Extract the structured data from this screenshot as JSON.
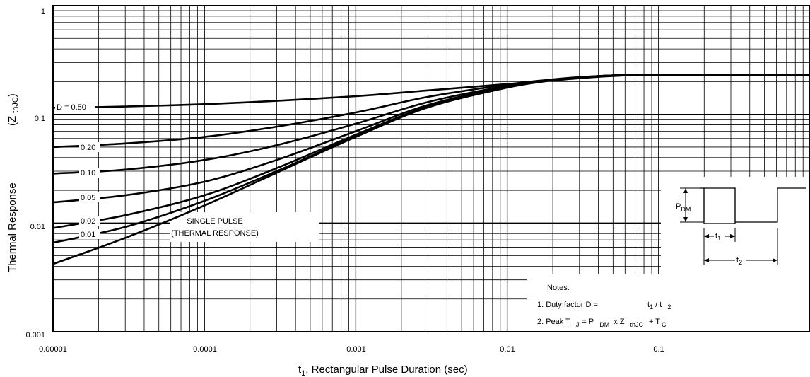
{
  "chart_data": {
    "type": "line",
    "title": "",
    "xlabel": {
      "main": "t",
      "sub": "1",
      "rest": ", Rectangular Pulse Duration (sec)"
    },
    "ylabel": {
      "main": "Thermal Response",
      "paren_open": "(Z",
      "sub": "thJC",
      "paren_close": ")"
    },
    "xscale": "log",
    "yscale": "log",
    "xlim": [
      1e-05,
      1
    ],
    "ylim": [
      0.001,
      1
    ],
    "grid": true,
    "x_tick_labels": [
      "0.00001",
      "0.0001",
      "0.001",
      "0.01",
      "0.1"
    ],
    "y_tick_labels": [
      "1",
      "0.1",
      "0.01",
      "0.001"
    ],
    "series": [
      {
        "name": "D = 0.50",
        "x": [
          1e-05,
          3e-05,
          0.0001,
          0.0003,
          0.001,
          0.003,
          0.01,
          0.02,
          0.03,
          0.05,
          0.1,
          1
        ],
        "y": [
          0.115,
          0.118,
          0.124,
          0.133,
          0.147,
          0.166,
          0.19,
          0.205,
          0.215,
          0.225,
          0.232,
          0.232
        ]
      },
      {
        "name": "0.20",
        "x": [
          1e-05,
          3e-05,
          0.0001,
          0.0003,
          0.001,
          0.003,
          0.01,
          0.02,
          0.03,
          0.05,
          0.1,
          1
        ],
        "y": [
          0.05,
          0.054,
          0.062,
          0.077,
          0.104,
          0.145,
          0.188,
          0.21,
          0.22,
          0.228,
          0.232,
          0.232
        ]
      },
      {
        "name": "0.10",
        "x": [
          1e-05,
          3e-05,
          0.0001,
          0.0003,
          0.001,
          0.003,
          0.01,
          0.02,
          0.03,
          0.05,
          0.1,
          1
        ],
        "y": [
          0.0285,
          0.031,
          0.038,
          0.052,
          0.082,
          0.13,
          0.183,
          0.208,
          0.219,
          0.228,
          0.232,
          0.232
        ]
      },
      {
        "name": "0.05",
        "x": [
          1e-05,
          3e-05,
          0.0001,
          0.0003,
          0.001,
          0.003,
          0.01,
          0.02,
          0.03,
          0.05,
          0.1,
          1
        ],
        "y": [
          0.0155,
          0.018,
          0.024,
          0.038,
          0.07,
          0.122,
          0.18,
          0.207,
          0.219,
          0.228,
          0.232,
          0.232
        ]
      },
      {
        "name": "0.02",
        "x": [
          1e-05,
          3e-05,
          0.0001,
          0.0003,
          0.001,
          0.003,
          0.01,
          0.02,
          0.03,
          0.05,
          0.1,
          1
        ],
        "y": [
          0.009,
          0.0118,
          0.018,
          0.032,
          0.065,
          0.118,
          0.178,
          0.206,
          0.218,
          0.228,
          0.232,
          0.232
        ]
      },
      {
        "name": "0.01",
        "x": [
          1e-05,
          3e-05,
          0.0001,
          0.0003,
          0.001,
          0.003,
          0.01,
          0.02,
          0.03,
          0.05,
          0.1,
          1
        ],
        "y": [
          0.0066,
          0.0092,
          0.016,
          0.03,
          0.063,
          0.117,
          0.177,
          0.206,
          0.218,
          0.228,
          0.232,
          0.232
        ]
      },
      {
        "name": "SINGLE PULSE",
        "x": [
          1e-05,
          3e-05,
          0.0001,
          0.0003,
          0.001,
          0.003,
          0.01,
          0.02,
          0.03,
          0.05,
          0.1,
          1
        ],
        "y": [
          0.0042,
          0.0073,
          0.0145,
          0.029,
          0.062,
          0.116,
          0.176,
          0.206,
          0.218,
          0.228,
          0.232,
          0.232
        ]
      }
    ],
    "curve_labels": [
      "D = 0.50",
      "0.20",
      "0.10",
      "0.05",
      "0.02",
      "0.01"
    ],
    "annotation": {
      "line1": "SINGLE PULSE",
      "line2": "(THERMAL RESPONSE)"
    }
  },
  "inset": {
    "pdm": {
      "main": "P",
      "sub": "DM"
    },
    "t1": {
      "main": "t",
      "sub": "1"
    },
    "t2": {
      "main": "t",
      "sub": "2"
    }
  },
  "notes": {
    "title": "Notes:",
    "note1": {
      "text": "1. Duty factor D =",
      "t1": "t",
      "t1sub": "1",
      "slash": " / t",
      "t2sub": "2"
    },
    "note2": {
      "text": "2. Peak T",
      "jsub": "J",
      "eq": "= P",
      "dmsub": "DM",
      "x": "x  Z",
      "thjcsub": "thJC",
      "plus": "+ T",
      "csub": "C"
    }
  }
}
